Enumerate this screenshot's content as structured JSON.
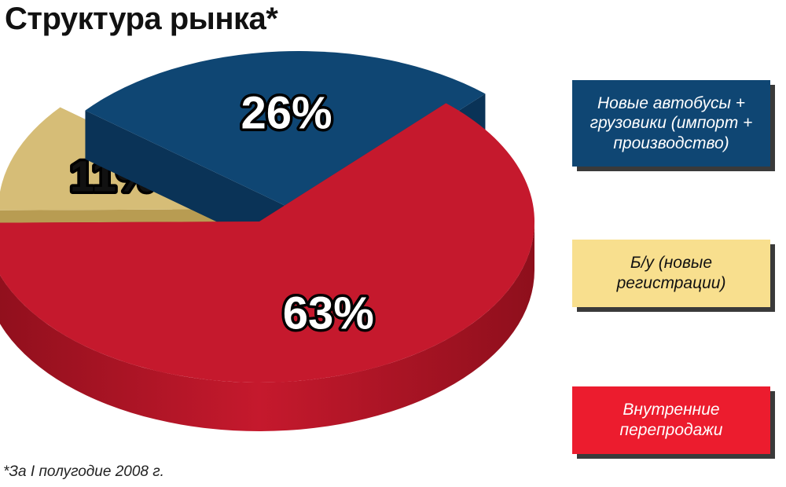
{
  "title": "Структура рынка*",
  "footnote": "*За I полугодие 2008 г.",
  "chart_data": {
    "type": "pie",
    "style": "3d-exploded",
    "slices": [
      {
        "key": "new",
        "label": "Новые автобусы + грузовики (импорт + производство)",
        "value": 26,
        "display": "26%",
        "color": "#0f4673",
        "side_color": "#0a3357",
        "text_color": "#ffffff"
      },
      {
        "key": "used",
        "label": "Б/у (новые регистрации)",
        "value": 11,
        "display": "11%",
        "color": "#d6bd77",
        "side_color": "#b89c52",
        "text_color": "#111111"
      },
      {
        "key": "resale",
        "label": "Внутренние перепродажи",
        "value": 63,
        "display": "63%",
        "color": "#c5192d",
        "side_color": "#8e0f1c",
        "text_color": "#ffffff"
      }
    ],
    "legend_placement": "right",
    "legend_colors": {
      "new": "#0f4673",
      "used": "#f8df8e",
      "resale": "#ec1c2e"
    }
  }
}
